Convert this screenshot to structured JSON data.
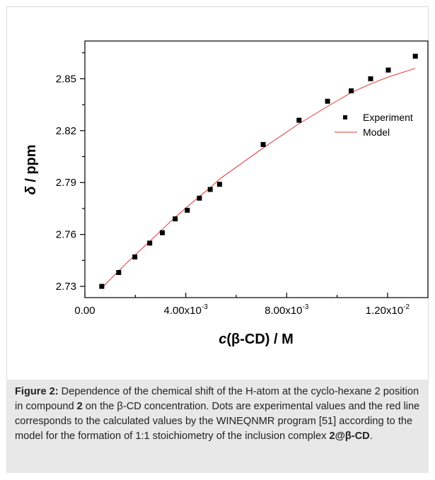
{
  "figure": {
    "caption": {
      "label": "Figure 2:",
      "t1": " Dependence of the chemical shift of the H-atom at the cyclo-hexane 2 position in compound ",
      "b1": "2",
      "t2": " on the β-CD concentration. Dots are experimental values and the red line corresponds to the calculated values by the WINEQNMR program [51] according to the model for the formation of 1:1 stoichiometry of the inclusion complex ",
      "b2": "2@β-CD",
      "t3": "."
    }
  },
  "chart_data": {
    "type": "scatter",
    "title": "",
    "xlabel": "c(β-CD) / M",
    "xlabel_parts": {
      "italic": "c",
      "rest": "(β-CD) / M"
    },
    "ylabel": "δ / ppm",
    "ylabel_parts": {
      "italic": "δ",
      "rest": " / ppm"
    },
    "xlim": [
      0,
      0.0136
    ],
    "ylim": [
      2.7235,
      2.8718
    ],
    "x_ticks": [
      {
        "value": 0,
        "label": "0.00"
      },
      {
        "value": 0.004,
        "label": "4.00x10",
        "exp": "-3"
      },
      {
        "value": 0.008,
        "label": "8.00x10",
        "exp": "-3"
      },
      {
        "value": 0.012,
        "label": "1.20x10",
        "exp": "-2"
      }
    ],
    "x_minor_ticks": [
      0.002,
      0.006,
      0.01
    ],
    "y_ticks": [
      {
        "value": 2.73,
        "label": "2.73"
      },
      {
        "value": 2.76,
        "label": "2.76"
      },
      {
        "value": 2.79,
        "label": "2.79"
      },
      {
        "value": 2.82,
        "label": "2.82"
      },
      {
        "value": 2.85,
        "label": "2.85"
      }
    ],
    "y_minor_ticks": [
      2.745,
      2.775,
      2.805,
      2.835,
      2.865
    ],
    "grid": false,
    "legend_position": "right",
    "series": [
      {
        "name": "Experiment",
        "kind": "points",
        "color": "#000000",
        "x": [
          0.00067,
          0.00134,
          0.00198,
          0.00257,
          0.00307,
          0.00358,
          0.00406,
          0.00454,
          0.00497,
          0.00534,
          0.00707,
          0.00849,
          0.00962,
          0.01056,
          0.01133,
          0.01203,
          0.0131
        ],
        "y": [
          2.73,
          2.738,
          2.747,
          2.755,
          2.761,
          2.769,
          2.774,
          2.781,
          2.786,
          2.789,
          2.812,
          2.826,
          2.837,
          2.843,
          2.85,
          2.855,
          2.863
        ]
      },
      {
        "name": "Model",
        "kind": "line",
        "color": "#e0372f",
        "x": [
          0.00067,
          0.00134,
          0.00198,
          0.00257,
          0.00307,
          0.00358,
          0.00406,
          0.00454,
          0.00497,
          0.00534,
          0.00707,
          0.00849,
          0.00962,
          0.01056,
          0.01133,
          0.01203,
          0.0131
        ],
        "y": [
          2.729,
          2.739,
          2.748,
          2.756,
          2.763,
          2.77,
          2.776,
          2.782,
          2.787,
          2.792,
          2.81,
          2.824,
          2.834,
          2.842,
          2.847,
          2.851,
          2.856
        ]
      }
    ]
  }
}
